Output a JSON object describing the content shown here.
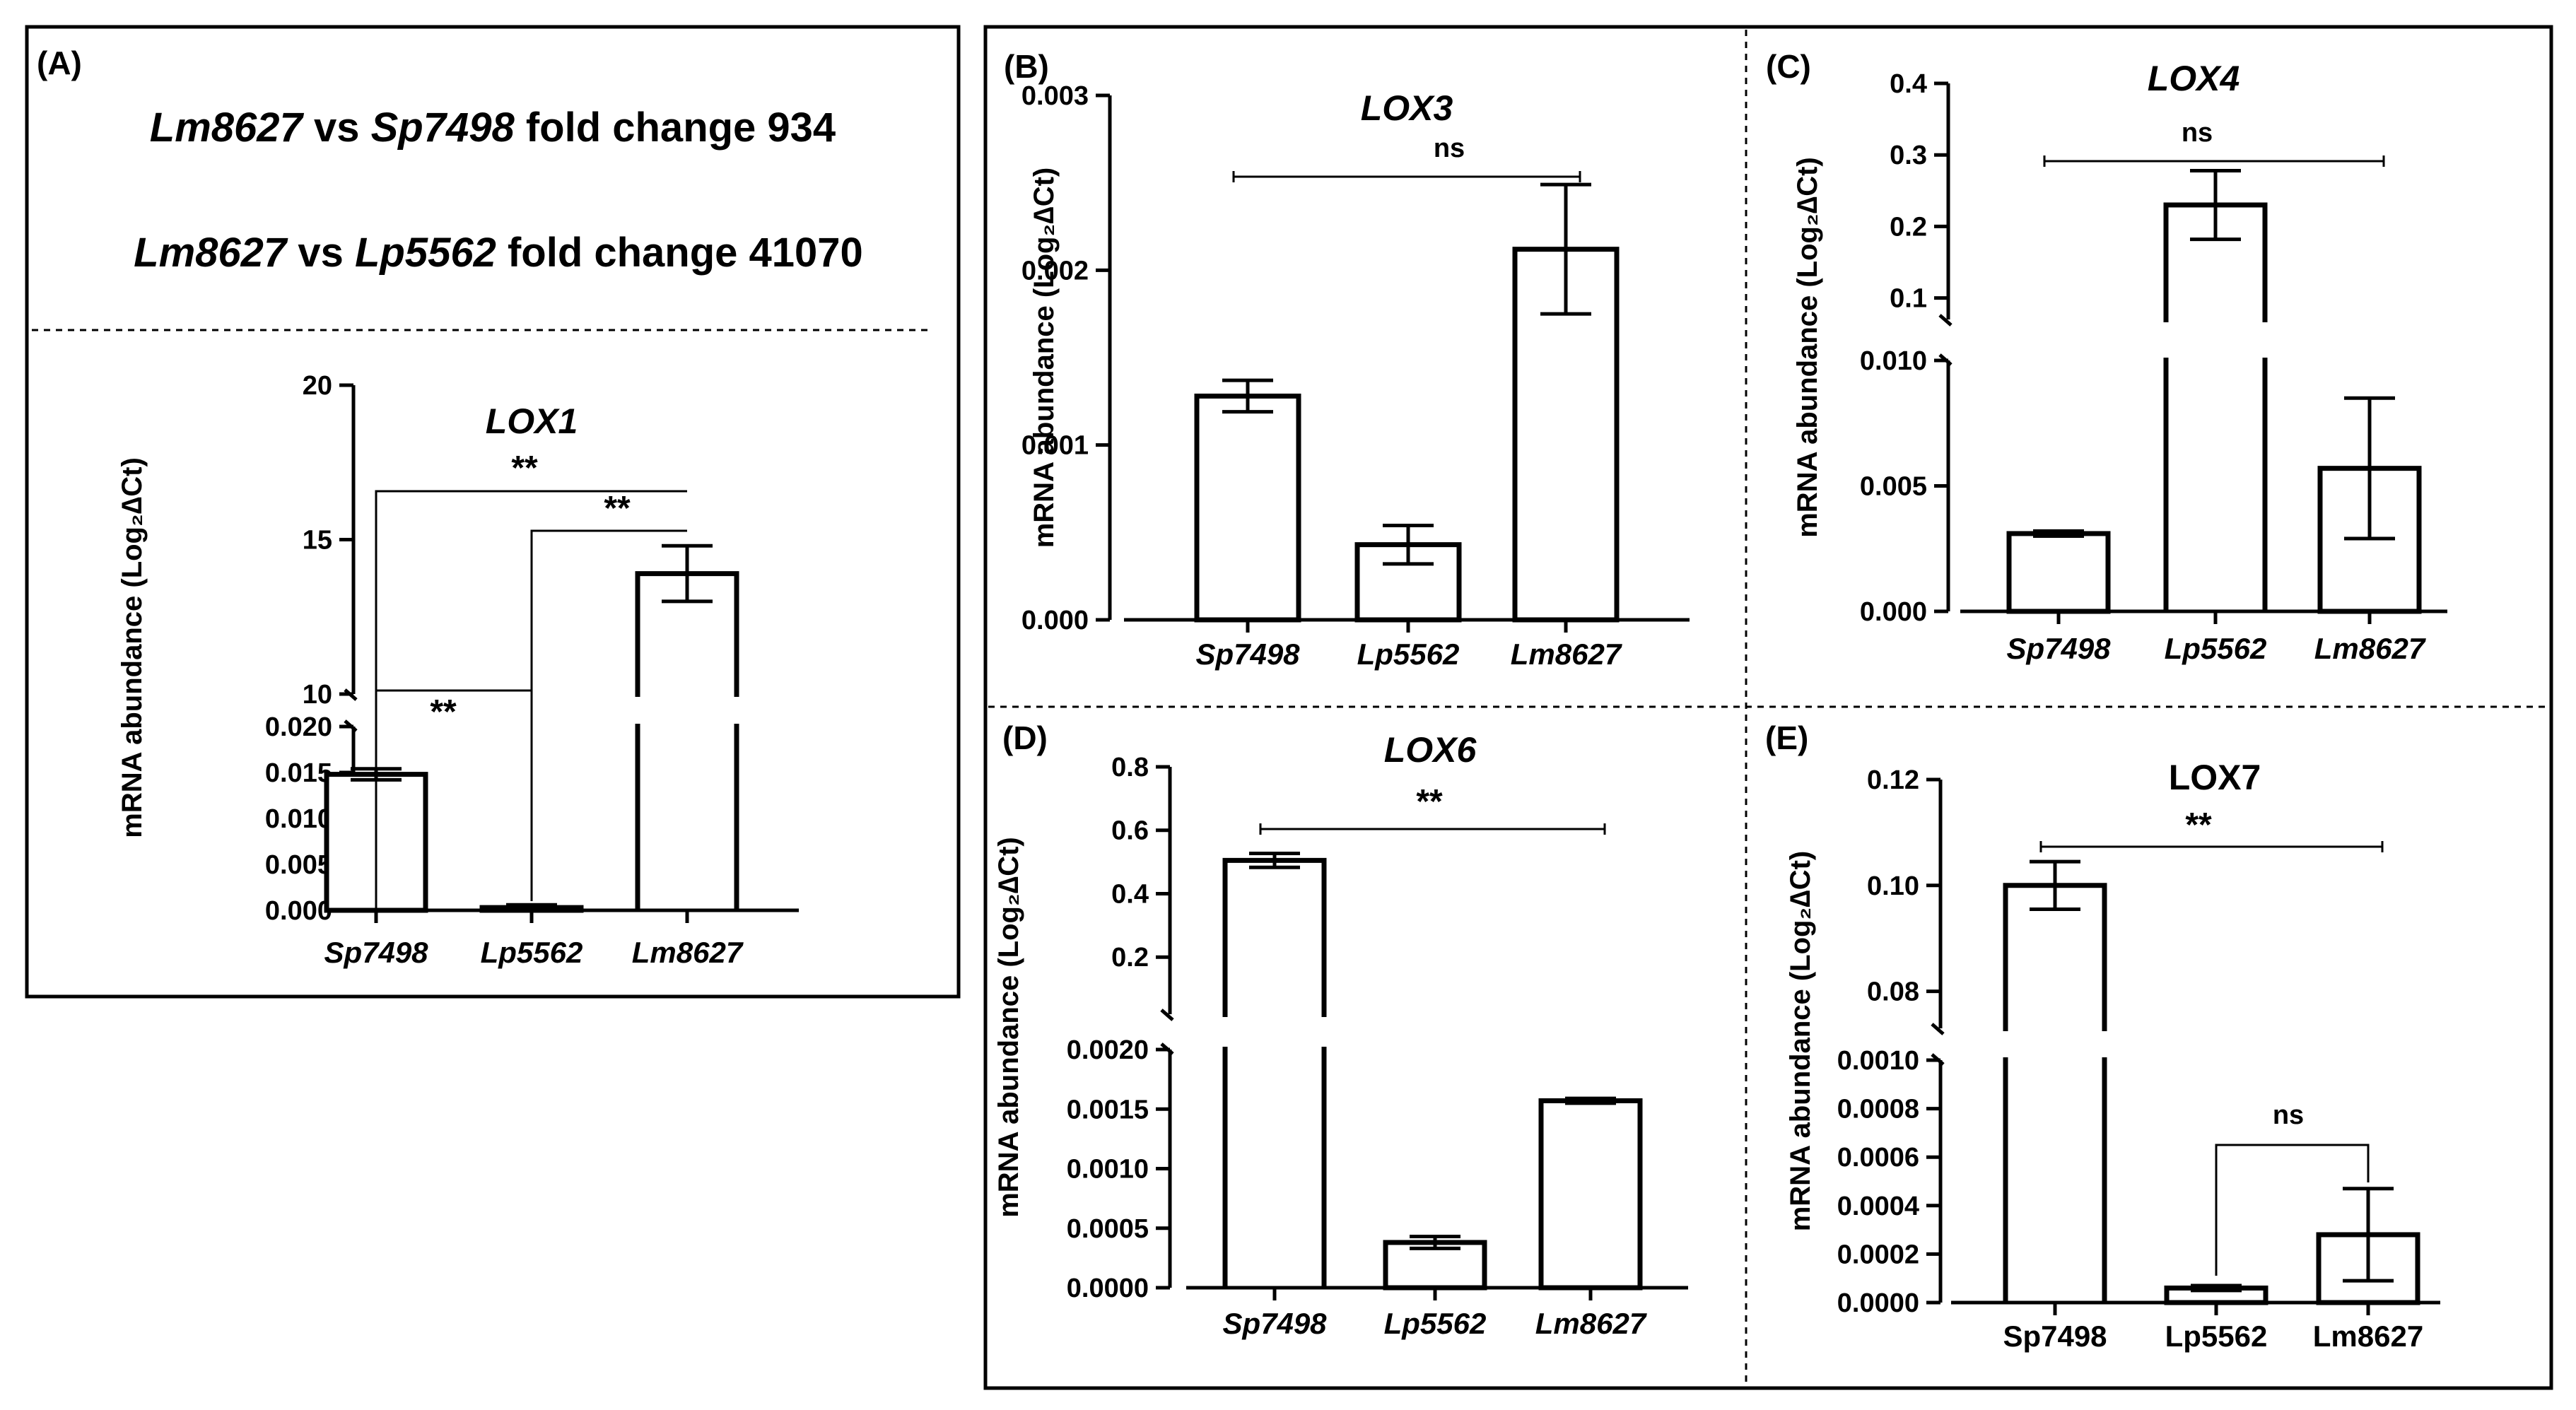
{
  "panel_a_header": {
    "line1": {
      "a": "Lm8627",
      "b": " vs ",
      "c": "Sp7498",
      "d": " fold change 934"
    },
    "line2": {
      "a": "Lm8627",
      "b": " vs ",
      "c": "Lp5562",
      "d": " fold change 41070"
    }
  },
  "chart_data": [
    {
      "panel": "(A)",
      "type": "bar",
      "title": "LOX1",
      "title_italic": true,
      "ylabel": "mRNA abundance (Log₂∆Ct)",
      "categories": [
        "Sp7498",
        "Lp5562",
        "Lm8627"
      ],
      "categories_italic": true,
      "values": [
        0.0148,
        0.0003,
        13.9
      ],
      "errors": [
        0.0006,
        0.0003,
        0.9
      ],
      "broken_axis": true,
      "segments": [
        {
          "range": [
            0,
            0.02
          ],
          "ticks": [
            "0.000",
            "0.005",
            "0.010",
            "0.015",
            "0.020"
          ],
          "tick_values": [
            0,
            0.005,
            0.01,
            0.015,
            0.02
          ]
        },
        {
          "range": [
            10,
            20
          ],
          "ticks": [
            "10",
            "15",
            "20"
          ],
          "tick_values": [
            10,
            15,
            20
          ]
        }
      ],
      "significance": [
        {
          "from": 0,
          "to": 2,
          "label": "**"
        },
        {
          "from": 1,
          "to": 2,
          "label": "**"
        },
        {
          "from": 0,
          "to": 1,
          "label": "**"
        }
      ]
    },
    {
      "panel": "(B)",
      "type": "bar",
      "title": "LOX3",
      "title_italic": true,
      "ylabel": "mRNA abundance (Log₂∆Ct)",
      "categories": [
        "Sp7498",
        "Lp5562",
        "Lm8627"
      ],
      "categories_italic": true,
      "values": [
        0.00128,
        0.00043,
        0.00212
      ],
      "errors": [
        9e-05,
        0.00011,
        0.00037
      ],
      "broken_axis": false,
      "segments": [
        {
          "range": [
            0,
            0.003
          ],
          "ticks": [
            "0.000",
            "0.001",
            "0.002",
            "0.003"
          ],
          "tick_values": [
            0,
            0.001,
            0.002,
            0.003
          ]
        }
      ],
      "significance": [
        {
          "from": 0,
          "to": 2,
          "label": "ns"
        }
      ]
    },
    {
      "panel": "(C)",
      "type": "bar",
      "title": "LOX4",
      "title_italic": true,
      "ylabel": "mRNA abundance (Log₂∆Ct)",
      "categories": [
        "Sp7498",
        "Lp5562",
        "Lm8627"
      ],
      "categories_italic": true,
      "values": [
        0.0031,
        0.23,
        0.0057
      ],
      "errors": [
        0.0001,
        0.048,
        0.0028
      ],
      "broken_axis": true,
      "segments": [
        {
          "range": [
            0,
            0.01
          ],
          "ticks": [
            "0.000",
            "0.005",
            "0.010"
          ],
          "tick_values": [
            0,
            0.005,
            0.01
          ]
        },
        {
          "range": [
            0.07,
            0.4
          ],
          "ticks": [
            "0.1",
            "0.2",
            "0.3",
            "0.4"
          ],
          "tick_values": [
            0.1,
            0.2,
            0.3,
            0.4
          ]
        }
      ],
      "significance": [
        {
          "from": 0,
          "to": 2,
          "label": "ns"
        }
      ]
    },
    {
      "panel": "(D)",
      "type": "bar",
      "title": "LOX6",
      "title_italic": true,
      "ylabel": "mRNA abundance (Log₂∆Ct)",
      "categories": [
        "Sp7498",
        "Lp5562",
        "Lm8627"
      ],
      "categories_italic": true,
      "values": [
        0.505,
        0.00038,
        0.00157
      ],
      "errors": [
        0.022,
        5e-05,
        2e-05
      ],
      "broken_axis": true,
      "segments": [
        {
          "range": [
            0,
            0.002
          ],
          "ticks": [
            "0.0000",
            "0.0005",
            "0.0010",
            "0.0015",
            "0.0020"
          ],
          "tick_values": [
            0,
            0.0005,
            0.001,
            0.0015,
            0.002
          ]
        },
        {
          "range": [
            0.02,
            0.8
          ],
          "ticks": [
            "0.2",
            "0.4",
            "0.6",
            "0.8"
          ],
          "tick_values": [
            0.2,
            0.4,
            0.6,
            0.8
          ]
        }
      ],
      "significance": [
        {
          "from": 0,
          "to": 2,
          "label": "**"
        }
      ]
    },
    {
      "panel": "(E)",
      "type": "bar",
      "title": "LOX7",
      "title_italic": false,
      "ylabel": "mRNA abundance (Log₂∆Ct)",
      "categories": [
        "Sp7498",
        "Lp5562",
        "Lm8627"
      ],
      "categories_italic": false,
      "values": [
        0.1,
        6e-05,
        0.00028
      ],
      "errors": [
        0.0045,
        1e-05,
        0.00019
      ],
      "broken_axis": true,
      "segments": [
        {
          "range": [
            0,
            0.001
          ],
          "ticks": [
            "0.0000",
            "0.0002",
            "0.0004",
            "0.0006",
            "0.0008",
            "0.0010"
          ],
          "tick_values": [
            0,
            0.0002,
            0.0004,
            0.0006,
            0.0008,
            0.001
          ]
        },
        {
          "range": [
            0.073,
            0.12
          ],
          "ticks": [
            "0.08",
            "0.10",
            "0.12"
          ],
          "tick_values": [
            0.08,
            0.1,
            0.12
          ]
        }
      ],
      "significance": [
        {
          "from": 0,
          "to": 2,
          "label": "**"
        },
        {
          "from": 1,
          "to": 2,
          "label": "ns"
        }
      ]
    }
  ]
}
